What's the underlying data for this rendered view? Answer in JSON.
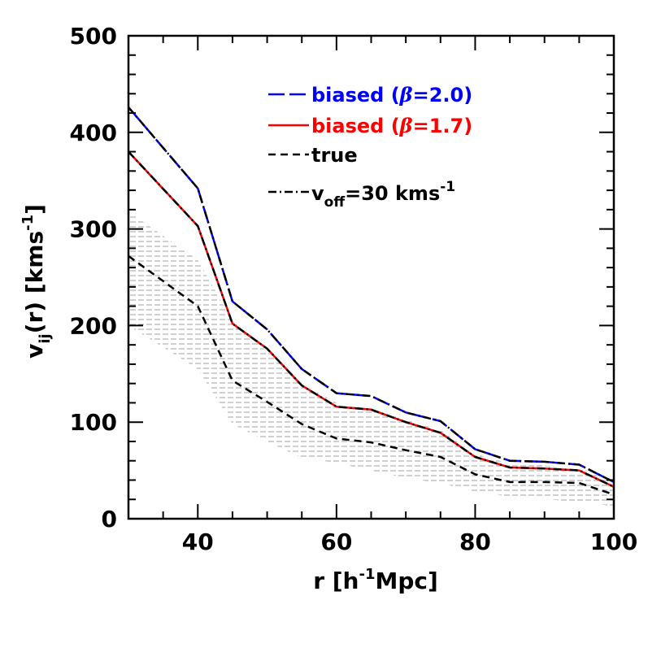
{
  "chart_data": {
    "type": "line",
    "xlabel": {
      "main": "r  [h",
      "sup": "-1",
      "tail": "Mpc]"
    },
    "ylabel": {
      "main": "v",
      "sub": "ij",
      "mid": "(r)  [kms",
      "sup": "-1",
      "tail": "]"
    },
    "xlim": [
      30,
      100
    ],
    "ylim": [
      0,
      500
    ],
    "xticks": [
      40,
      60,
      80,
      100
    ],
    "yticks": [
      0,
      100,
      200,
      300,
      400,
      500
    ],
    "grid": false,
    "legend_position": "top-right",
    "legend": [
      {
        "id": "b20",
        "prefix": "biased  (",
        "beta": "β",
        "suffix": "=2.0)",
        "color": "#0000ff",
        "style": "long-dash"
      },
      {
        "id": "b17",
        "prefix": "biased   (",
        "beta": "β",
        "suffix": "=1.7)",
        "color": "#ff0000",
        "style": "solid"
      },
      {
        "id": "true",
        "text": "true",
        "color": "#000000",
        "style": "dashed"
      },
      {
        "id": "voff",
        "pre": "v",
        "sub": "off",
        "post": "=30  kms",
        "sup": "-1",
        "color": "#000000",
        "style": "dash-dot"
      }
    ],
    "x": [
      30,
      40,
      45,
      50,
      55,
      60,
      65,
      70,
      75,
      80,
      85,
      90,
      95,
      100
    ],
    "series": [
      {
        "name": "biased (β=2.0)",
        "color": "#0000ff",
        "style": "long-dash",
        "values": [
          426,
          342,
          225,
          196,
          155,
          130,
          127,
          110,
          101,
          72,
          60,
          59,
          56,
          38
        ]
      },
      {
        "name": "biased (β=1.7)",
        "color": "#ff0000",
        "style": "solid",
        "values": [
          380,
          303,
          202,
          176,
          138,
          116,
          113,
          100,
          89,
          64,
          53,
          52,
          50,
          33
        ]
      },
      {
        "name": "true",
        "color": "#000000",
        "style": "dashed",
        "values": [
          272,
          220,
          143,
          121,
          98,
          83,
          79,
          71,
          64,
          46,
          38,
          38,
          37,
          25
        ]
      }
    ],
    "overlays": [
      {
        "name": "v_off=30 kms-1 (biased β=2.0)",
        "color": "#000000",
        "style": "dash-dot",
        "values": [
          426,
          342,
          225,
          196,
          155,
          130,
          127,
          110,
          101,
          72,
          60,
          59,
          56,
          38
        ]
      },
      {
        "name": "v_off=30 kms-1 (biased β=1.7)",
        "color": "#000000",
        "style": "dash-dot",
        "values": [
          380,
          303,
          202,
          176,
          138,
          116,
          113,
          100,
          89,
          64,
          53,
          52,
          50,
          33
        ]
      }
    ],
    "band": {
      "name": "scatter of true",
      "color": "#a0a0a0",
      "upper": [
        318,
        268,
        205,
        173,
        140,
        120,
        113,
        103,
        92,
        67,
        57,
        55,
        53,
        37
      ],
      "lower": [
        200,
        155,
        98,
        80,
        63,
        58,
        50,
        42,
        37,
        28,
        23,
        20,
        18,
        13
      ]
    }
  }
}
